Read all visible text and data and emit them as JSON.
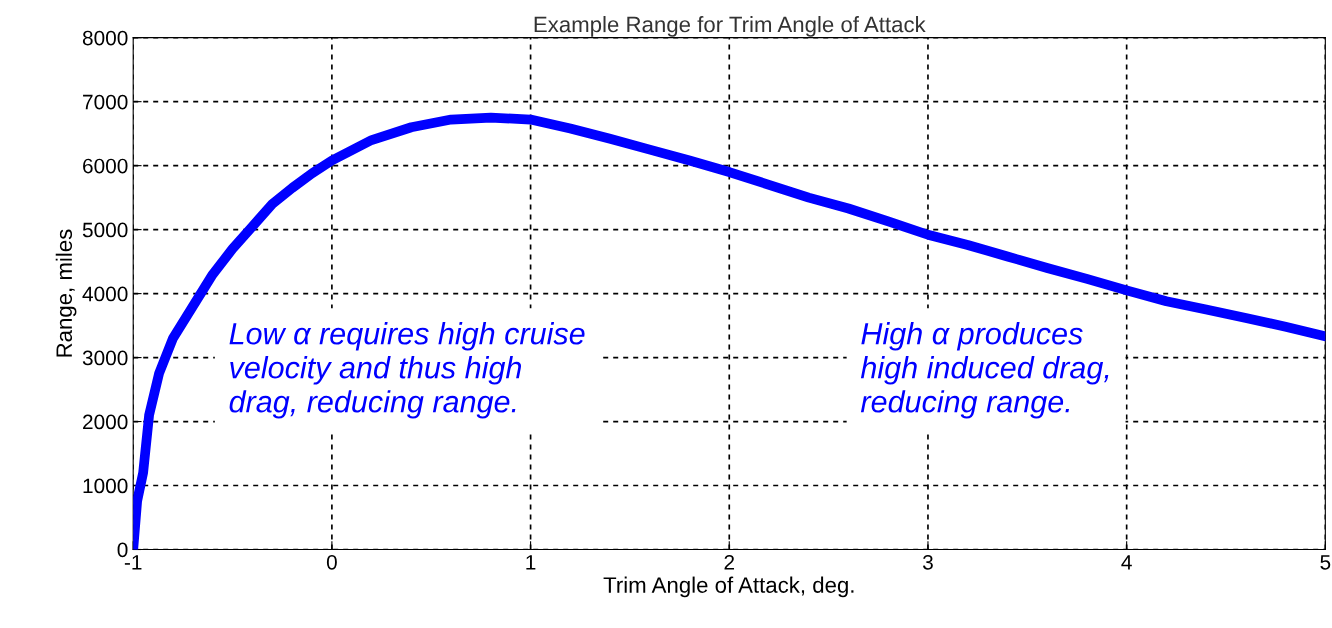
{
  "chart_data": {
    "type": "line",
    "title": "Example Range for Trim Angle of Attack",
    "xlabel": "Trim Angle of Attack, deg.",
    "ylabel": "Range, miles",
    "x": [
      -1,
      -0.98,
      -0.95,
      -0.92,
      -0.87,
      -0.8,
      -0.7,
      -0.6,
      -0.5,
      -0.4,
      -0.3,
      -0.2,
      -0.1,
      0,
      0.2,
      0.4,
      0.6,
      0.8,
      1.0,
      1.2,
      1.4,
      1.6,
      1.8,
      2.0,
      2.2,
      2.4,
      2.6,
      2.8,
      3.0,
      3.2,
      3.4,
      3.6,
      3.8,
      4.0,
      4.2,
      4.4,
      4.6,
      4.8,
      5.0
    ],
    "series": [
      {
        "color": "#0000ff",
        "values": [
          0,
          760,
          1200,
          2100,
          2750,
          3300,
          3800,
          4300,
          4700,
          5050,
          5400,
          5650,
          5880,
          6080,
          6400,
          6600,
          6720,
          6750,
          6720,
          6580,
          6420,
          6250,
          6080,
          5900,
          5700,
          5500,
          5330,
          5130,
          4920,
          4760,
          4580,
          4400,
          4230,
          4050,
          3880,
          3750,
          3620,
          3480,
          3330
        ]
      }
    ],
    "xlim": [
      -1,
      5
    ],
    "ylim": [
      0,
      8000
    ],
    "xticks": [
      -1,
      0,
      1,
      2,
      3,
      4,
      5
    ],
    "yticks": [
      0,
      1000,
      2000,
      3000,
      4000,
      5000,
      6000,
      7000,
      8000
    ],
    "grid": true,
    "line_style": "solid",
    "marker": "none",
    "annotations": [
      "Low α requires high cruise\nvelocity and thus high\ndrag, reducing range.",
      "High α produces\nhigh induced drag,\nreducing range."
    ]
  }
}
